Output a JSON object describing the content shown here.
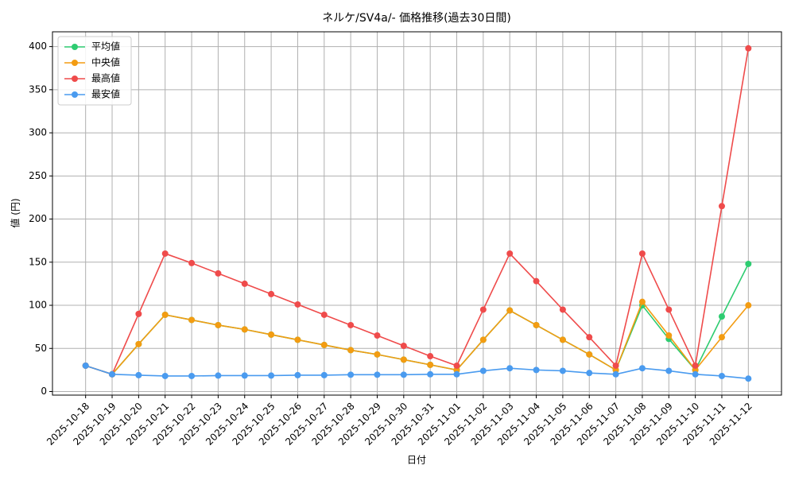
{
  "chart_data": {
    "type": "line",
    "title": "ネルケ/SV4a/- 価格推移(過去30日間)",
    "x_label": "日付",
    "y_label": "値 (円)",
    "categories": [
      "2025-10-18",
      "2025-10-19",
      "2025-10-20",
      "2025-10-21",
      "2025-10-22",
      "2025-10-23",
      "2025-10-24",
      "2025-10-25",
      "2025-10-26",
      "2025-10-27",
      "2025-10-28",
      "2025-10-29",
      "2025-10-30",
      "2025-10-31",
      "2025-11-01",
      "2025-11-02",
      "2025-11-03",
      "2025-11-04",
      "2025-11-05",
      "2025-11-06",
      "2025-11-07",
      "2025-11-08",
      "2025-11-09",
      "2025-11-10",
      "2025-11-11",
      "2025-11-12"
    ],
    "series": [
      {
        "name": "平均値",
        "color": "#2ecc71",
        "values": [
          30,
          20,
          55,
          89,
          83,
          77,
          72,
          66,
          60,
          54,
          48,
          43,
          37,
          31,
          25,
          60,
          94,
          77,
          60,
          43,
          25,
          100,
          61,
          25,
          87,
          148
        ]
      },
      {
        "name": "中央値",
        "color": "#f39c12",
        "values": [
          30,
          20,
          55,
          89,
          83,
          77,
          72,
          66,
          60,
          54,
          48,
          43,
          37,
          31,
          25,
          60,
          94,
          77,
          60,
          43,
          25,
          104,
          65,
          25,
          63,
          100
        ]
      },
      {
        "name": "最高値",
        "color": "#ef4b4b",
        "values": [
          30,
          20,
          90,
          160,
          149,
          137,
          125,
          113,
          101,
          89,
          77,
          65,
          53,
          41,
          30,
          95,
          160,
          128,
          95,
          63,
          30,
          160,
          95,
          30,
          215,
          398
        ]
      },
      {
        "name": "最安値",
        "color": "#4a9bef",
        "values": [
          30,
          20,
          19,
          18,
          18,
          18.5,
          18.5,
          18.5,
          19,
          19,
          19.5,
          19.5,
          19.5,
          20,
          20,
          24,
          27,
          25,
          24,
          21.5,
          20,
          27,
          24,
          20,
          18,
          15
        ]
      }
    ],
    "ylim": [
      -4.15,
      417.15
    ],
    "yticks": [
      0,
      50,
      100,
      150,
      200,
      250,
      300,
      350,
      400
    ],
    "grid": true,
    "legend": "upper left"
  }
}
